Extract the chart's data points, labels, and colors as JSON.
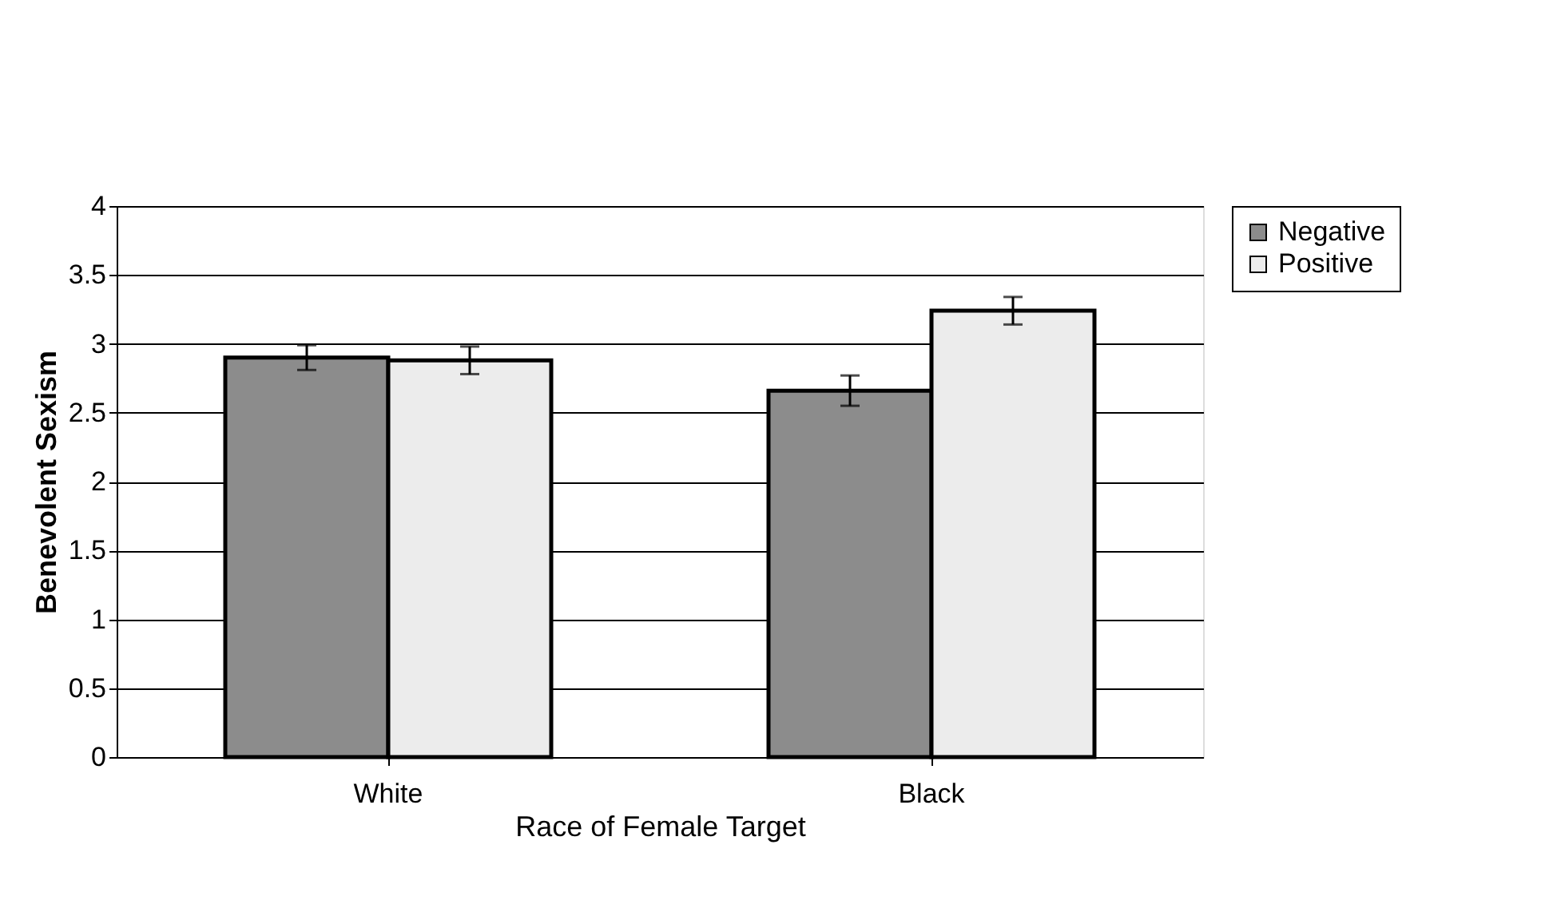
{
  "chart_data": {
    "type": "bar",
    "xlabel": "Race of Female Target",
    "ylabel": "Benevolent Sexism",
    "categories": [
      "White",
      "Black"
    ],
    "series": [
      {
        "name": "Negative",
        "color": "#8c8c8c",
        "values": [
          2.9,
          2.66
        ],
        "errors": [
          0.09,
          0.11
        ]
      },
      {
        "name": "Positive",
        "color": "#ececec",
        "values": [
          2.88,
          3.24
        ],
        "errors": [
          0.1,
          0.1
        ]
      }
    ],
    "ylim": [
      0,
      4
    ],
    "yticks": [
      0,
      0.5,
      1,
      1.5,
      2,
      2.5,
      3,
      3.5,
      4
    ],
    "grid": "y",
    "legend": "right"
  }
}
